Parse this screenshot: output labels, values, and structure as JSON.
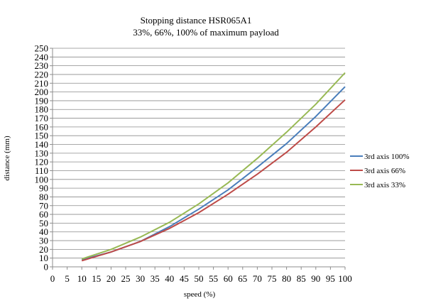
{
  "chart_data": {
    "type": "line",
    "title": "Stopping distance HSR065A1",
    "subtitle": "33%, 66%, 100% of maximum payload",
    "xlabel": "speed (%)",
    "ylabel": "distance (mm)",
    "xlim": [
      0,
      100
    ],
    "ylim": [
      0,
      250
    ],
    "x_ticks": [
      0,
      5,
      10,
      15,
      20,
      25,
      30,
      35,
      40,
      45,
      50,
      55,
      60,
      65,
      70,
      75,
      80,
      85,
      90,
      95,
      100
    ],
    "y_ticks": [
      0,
      10,
      20,
      30,
      40,
      50,
      60,
      70,
      80,
      90,
      100,
      110,
      120,
      130,
      140,
      150,
      160,
      170,
      180,
      190,
      200,
      210,
      220,
      230,
      240,
      250
    ],
    "grid": "horizontal",
    "legend_position": "right",
    "x": [
      10,
      20,
      30,
      40,
      50,
      60,
      70,
      80,
      90,
      100
    ],
    "series": [
      {
        "name": "3rd axis 100%",
        "color": "#4a7ebb",
        "values": [
          8,
          17,
          29,
          46,
          66,
          88,
          114,
          141,
          172,
          206
        ]
      },
      {
        "name": "3rd axis 66%",
        "color": "#be4b48",
        "values": [
          7,
          17,
          29,
          44,
          62,
          83,
          106,
          131,
          160,
          191
        ]
      },
      {
        "name": "3rd axis 33%",
        "color": "#98b954",
        "values": [
          9,
          20,
          34,
          51,
          72,
          96,
          124,
          154,
          186,
          222
        ]
      }
    ]
  }
}
